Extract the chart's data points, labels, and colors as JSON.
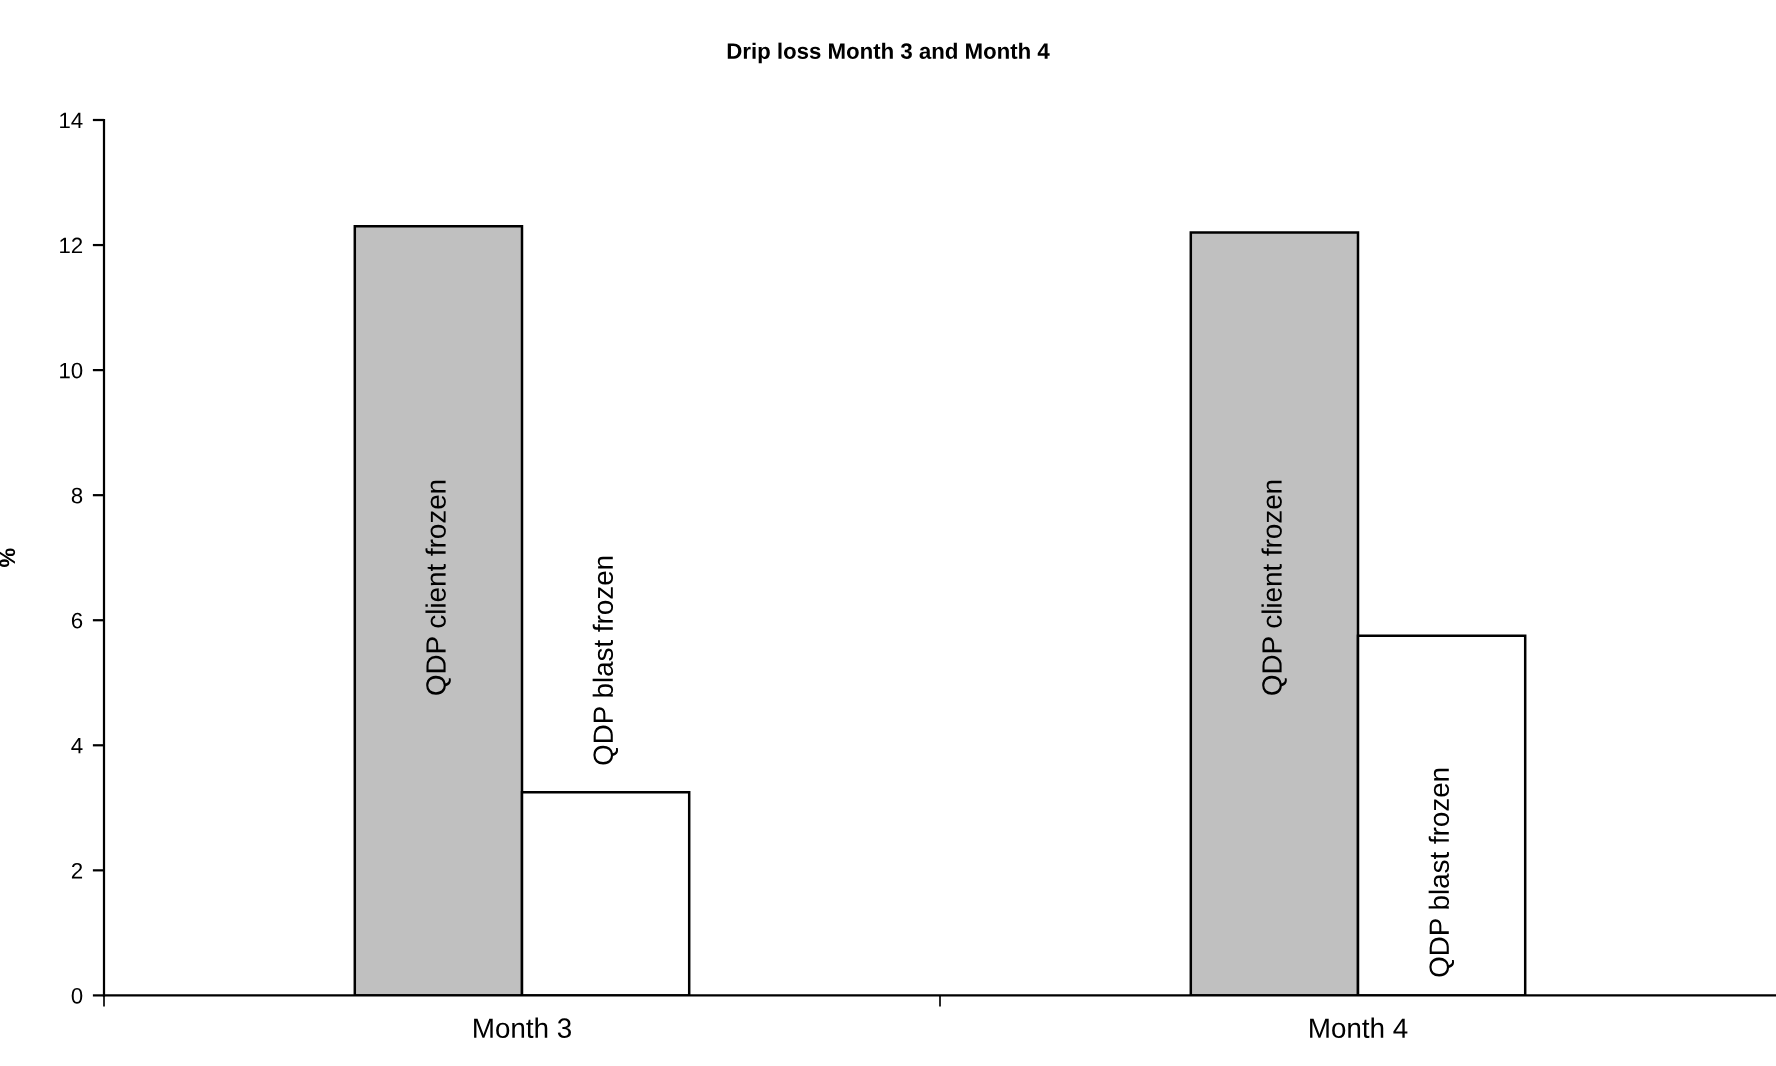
{
  "chart_data": {
    "type": "bar",
    "title": "Drip loss Month 3 and Month 4",
    "ylabel": "%",
    "categories": [
      "Month 3",
      "Month 4"
    ],
    "series": [
      {
        "name": "QDP client frozen",
        "color": "#c0c0c0",
        "values": [
          12.3,
          12.2
        ]
      },
      {
        "name": "QDP blast frozen",
        "color": "#ffffff",
        "values": [
          3.25,
          5.75
        ]
      }
    ],
    "ylim": [
      0,
      14
    ],
    "yticks": [
      0,
      2,
      4,
      6,
      8,
      10,
      12,
      14
    ],
    "grid": false,
    "legend": false
  }
}
